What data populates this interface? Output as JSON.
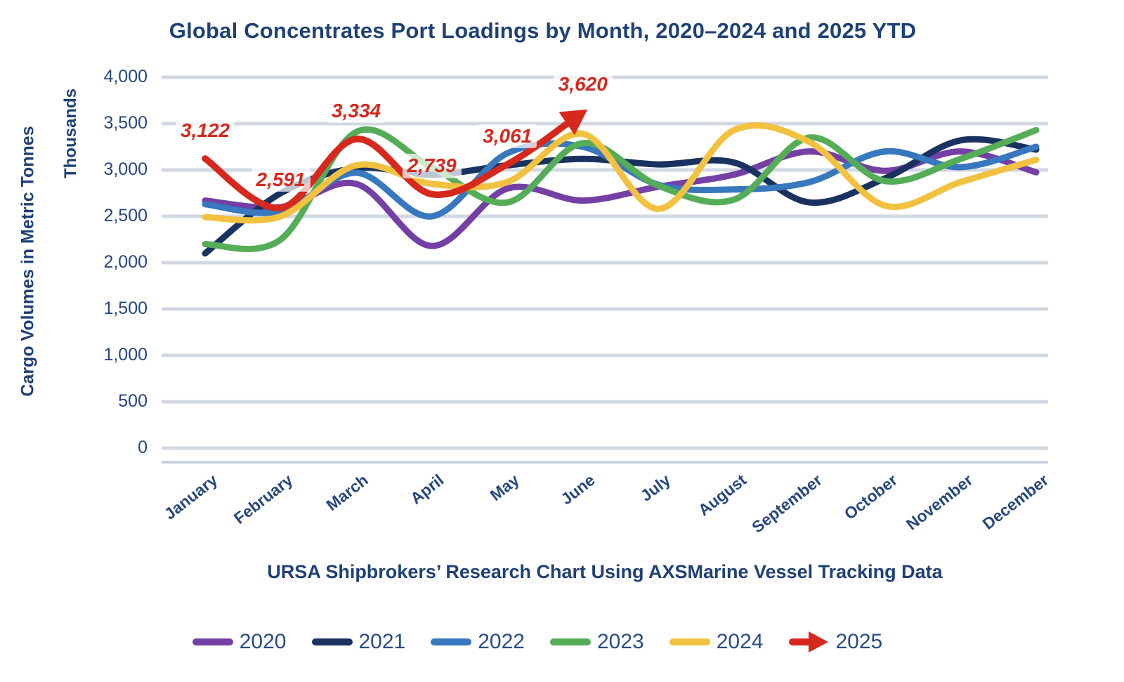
{
  "chart_data": {
    "type": "line",
    "title": "Global Concentrates Port Loadings by Month, 2020–2024 and 2025 YTD",
    "source_caption": "URSA Shipbrokers’ Research Chart Using AXSMarine Vessel Tracking Data",
    "ylabel": "Cargo Volumes in Metric Tonnes",
    "ylabel_units": "Thousands",
    "xlabel": "",
    "ylim": [
      0,
      4000
    ],
    "ytick_step": 500,
    "yticks": [
      "4,000",
      "3,500",
      "3,000",
      "2,500",
      "2,000",
      "1,500",
      "1,000",
      "500",
      "0"
    ],
    "grid": "horizontal",
    "legend_position": "bottom",
    "gridline_color": "#D2D8E2",
    "categories": [
      "January",
      "February",
      "March",
      "April",
      "May",
      "June",
      "July",
      "August",
      "September",
      "October",
      "November",
      "December"
    ],
    "series": [
      {
        "name": "2020",
        "color": "#7440A5",
        "values": [
          2670,
          2600,
          2850,
          2180,
          2800,
          2670,
          2820,
          2950,
          3200,
          2990,
          3200,
          2975
        ]
      },
      {
        "name": "2021",
        "color": "#1A3260",
        "values": [
          2100,
          2750,
          3020,
          2950,
          3050,
          3120,
          3060,
          3080,
          2650,
          2910,
          3320,
          3220
        ]
      },
      {
        "name": "2022",
        "color": "#3778BE",
        "values": [
          2630,
          2550,
          2970,
          2500,
          3180,
          3250,
          2840,
          2790,
          2870,
          3200,
          3030,
          3250
        ]
      },
      {
        "name": "2023",
        "color": "#55AD58",
        "values": [
          2200,
          2250,
          3410,
          3030,
          2650,
          3290,
          2830,
          2680,
          3350,
          2880,
          3120,
          3430
        ]
      },
      {
        "name": "2024",
        "color": "#F3C140",
        "values": [
          2490,
          2500,
          3050,
          2850,
          2870,
          3390,
          2580,
          3430,
          3300,
          2615,
          2870,
          3110
        ]
      },
      {
        "name": "2025",
        "color": "#D7281E",
        "style": "arrow",
        "partial_year": true,
        "values": [
          3122,
          2591,
          3334,
          2739,
          3061,
          3620
        ],
        "point_labels": [
          "3,122",
          "2,591",
          "3,334",
          "2,739",
          "3,061",
          "3,620"
        ]
      }
    ]
  }
}
